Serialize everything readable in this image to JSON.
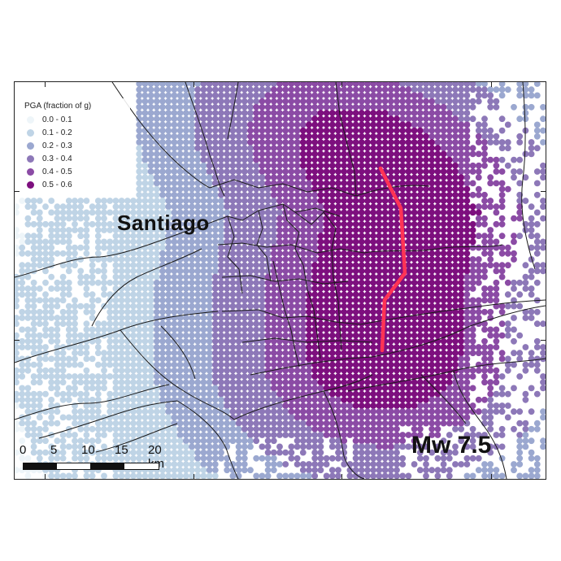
{
  "legend": {
    "title": "PGA (fraction of g)",
    "items": [
      {
        "label": "0.0 - 0.1",
        "color": "#eef5f9"
      },
      {
        "label": "0.1 - 0.2",
        "color": "#bfd4e6"
      },
      {
        "label": "0.2 - 0.3",
        "color": "#9ba8d0"
      },
      {
        "label": "0.3 - 0.4",
        "color": "#8d78b8"
      },
      {
        "label": "0.4 - 0.5",
        "color": "#8b4ba5"
      },
      {
        "label": "0.5 - 0.6",
        "color": "#7d0f7e"
      }
    ]
  },
  "city_label": "Santiago",
  "event_label": "Mw 7.5",
  "scale_bar": {
    "labels": [
      "0",
      "5",
      "10",
      "15",
      "20 km"
    ]
  },
  "colors": {
    "fault_trace": "#ff3355",
    "boundaries": "#1a1a1a",
    "frame": "#222222"
  }
}
